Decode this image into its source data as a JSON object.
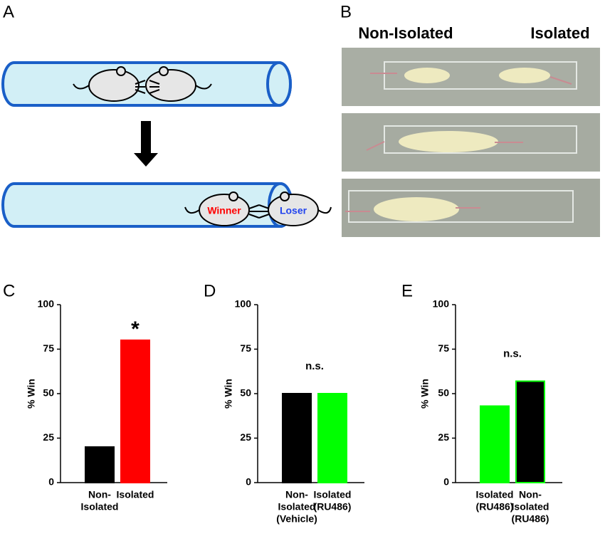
{
  "panel_labels": [
    "A",
    "B",
    "C",
    "D",
    "E"
  ],
  "diagram": {
    "winner": "Winner",
    "loser": "Loser"
  },
  "photos": {
    "left": "Non-Isolated",
    "right": "Isolated"
  },
  "chart_data": [
    {
      "type": "bar",
      "ylabel": "% Win",
      "annotation": "*",
      "categories": [
        [
          "Non-",
          "Isolated"
        ],
        [
          "Isolated"
        ]
      ],
      "values": [
        20,
        80
      ],
      "colors": [
        "#000000",
        "#ff0000"
      ],
      "ylim": [
        0,
        100
      ],
      "yticks": [
        0,
        25,
        50,
        75,
        100
      ]
    },
    {
      "type": "bar",
      "ylabel": "% Win",
      "annotation": "n.s.",
      "categories": [
        [
          "Non-",
          "Isolated",
          "(Vehicle)"
        ],
        [
          "Isolated",
          "(RU486)"
        ]
      ],
      "values": [
        50,
        50
      ],
      "colors": [
        "#000000",
        "#00ff00"
      ],
      "ylim": [
        0,
        100
      ],
      "yticks": [
        0,
        25,
        50,
        75,
        100
      ]
    },
    {
      "type": "bar",
      "ylabel": "% Win",
      "annotation": "n.s.",
      "categories": [
        [
          "Isolated",
          "(RU486)"
        ],
        [
          "Non-",
          "Isolated",
          "(RU486)"
        ]
      ],
      "values": [
        43,
        57
      ],
      "colors": [
        "#00ff00",
        "#000000"
      ],
      "edgecolors": [
        "#00ff00",
        "#00ff00"
      ],
      "ylim": [
        0,
        100
      ],
      "yticks": [
        0,
        25,
        50,
        75,
        100
      ]
    }
  ]
}
